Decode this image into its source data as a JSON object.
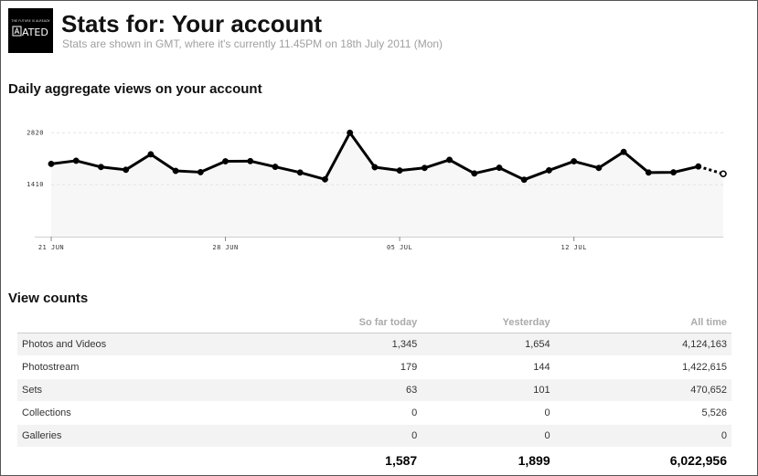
{
  "header": {
    "title": "Stats for: Your account",
    "subtitle": "Stats are shown in GMT, where it's currently 11.45PM on 18th July 2011 (Mon)",
    "logo_text": "ATED",
    "logo_small_text": "THE FUTURE IS ALREADY"
  },
  "chart_section": {
    "heading": "Daily aggregate views on your account"
  },
  "chart_data": {
    "type": "line",
    "title": "Daily aggregate views on your account",
    "xlabel": "",
    "ylabel": "",
    "x": [
      "21 Jun",
      "22 Jun",
      "23 Jun",
      "24 Jun",
      "25 Jun",
      "26 Jun",
      "27 Jun",
      "28 Jun",
      "29 Jun",
      "30 Jun",
      "01 Jul",
      "02 Jul",
      "03 Jul",
      "04 Jul",
      "05 Jul",
      "06 Jul",
      "07 Jul",
      "08 Jul",
      "09 Jul",
      "10 Jul",
      "11 Jul",
      "12 Jul",
      "13 Jul",
      "14 Jul",
      "15 Jul",
      "16 Jul",
      "17 Jul",
      "18 Jul"
    ],
    "series": [
      {
        "values": [
          1975,
          2060,
          1890,
          1815,
          2235,
          1785,
          1750,
          2045,
          2050,
          1895,
          1740,
          1555,
          2820,
          1885,
          1795,
          1865,
          2085,
          1715,
          1870,
          1545,
          1800,
          2045,
          1865,
          2300,
          1740,
          1745,
          1905,
          1705
        ]
      }
    ],
    "projected_from_index": 26,
    "y_ticks": [
      1410,
      2820
    ],
    "x_ticks": [
      "21 JUN",
      "28 JUN",
      "05 JUL",
      "12 JUL"
    ],
    "x_tick_indices": [
      0,
      7,
      14,
      21
    ],
    "ylim": [
      0,
      3100
    ],
    "grid": true,
    "colors": {
      "line": "#000000",
      "area": "#f7f7f7",
      "marker_fill": "#000000",
      "last_marker_fill": "#ffffff"
    }
  },
  "view_counts": {
    "heading": "View counts",
    "columns": [
      "So far today",
      "Yesterday",
      "All time"
    ],
    "rows": [
      {
        "name": "Photos and Videos",
        "today": "1,345",
        "yesterday": "1,654",
        "all_time": "4,124,163"
      },
      {
        "name": "Photostream",
        "today": "179",
        "yesterday": "144",
        "all_time": "1,422,615"
      },
      {
        "name": "Sets",
        "today": "63",
        "yesterday": "101",
        "all_time": "470,652"
      },
      {
        "name": "Collections",
        "today": "0",
        "yesterday": "0",
        "all_time": "5,526"
      },
      {
        "name": "Galleries",
        "today": "0",
        "yesterday": "0",
        "all_time": "0"
      }
    ],
    "totals": {
      "today": "1,587",
      "yesterday": "1,899",
      "all_time": "6,022,956"
    }
  }
}
